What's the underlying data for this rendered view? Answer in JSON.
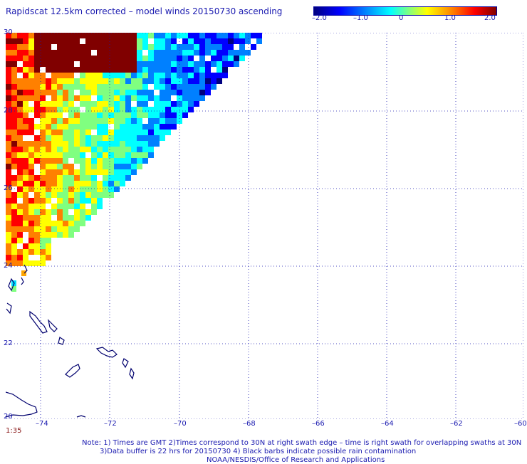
{
  "title": "Rapidscat 12.5km corrected – model winds 20150730 ascending",
  "colorbar": {
    "ticks": [
      "–2.0",
      "–1.0",
      "0",
      "1.0",
      "2.0"
    ],
    "tick_values": [
      -2.0,
      -1.0,
      0,
      1.0,
      2.0
    ],
    "colors": [
      "#000080",
      "#0000ff",
      "#0080ff",
      "#00ffff",
      "#80ff80",
      "#ffff00",
      "#ff8000",
      "#ff0000",
      "#800000"
    ]
  },
  "axes": {
    "lat_labels": [
      "30",
      "28",
      "26",
      "24",
      "22",
      "20"
    ],
    "lon_labels": [
      "–74",
      "–72",
      "–70",
      "–68",
      "–66",
      "–64",
      "–62",
      "–60"
    ]
  },
  "timestamp": "1:35",
  "notes": [
    "Note: 1) Times are GMT 2)Times correspond to 30N at right swath edge – time is right swath for overlapping swaths at 30N",
    "3)Data buffer is 22 hrs for 20150730 4) Black barbs indicate possible rain contamination",
    "NOAA/NESDIS/Office of Research and Applications"
  ],
  "map": {
    "lon_range": [
      -74.9,
      -60
    ],
    "lat_range": [
      20,
      30
    ],
    "grid": true,
    "coastline_color": "#00006e",
    "grid_color": "#1a1ab0"
  }
}
